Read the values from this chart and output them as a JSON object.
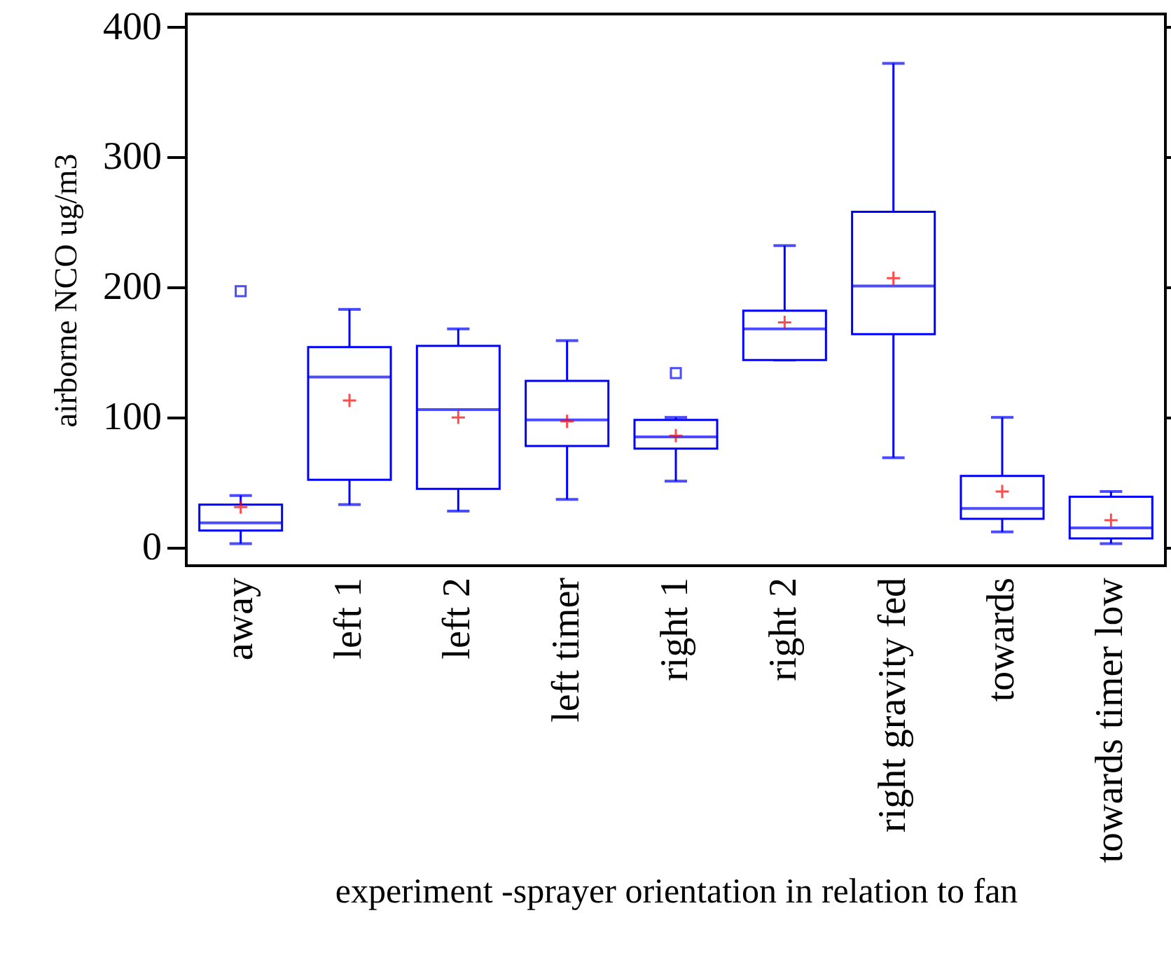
{
  "chart_data": {
    "type": "box",
    "xlabel": "experiment -sprayer orientation in relation to fan",
    "ylabel": "airborne NCO ug/m3",
    "categories": [
      "away",
      "left 1",
      "left 2",
      "left timer",
      "right 1",
      "right 2",
      "right gravity fed",
      "towards",
      "towards timer low"
    ],
    "boxes": [
      {
        "low": 3,
        "q1": 13,
        "median": 19,
        "q3": 33,
        "high": 40,
        "mean": 31,
        "outliers": [
          197
        ]
      },
      {
        "low": 33,
        "q1": 52,
        "median": 131,
        "q3": 154,
        "high": 183,
        "mean": 113
      },
      {
        "low": 28,
        "q1": 45,
        "median": 106,
        "q3": 155,
        "high": 168,
        "mean": 100
      },
      {
        "low": 37,
        "q1": 78,
        "median": 98,
        "q3": 128,
        "high": 159,
        "mean": 97
      },
      {
        "low": 51,
        "q1": 76,
        "median": 85,
        "q3": 98,
        "high": 100,
        "mean": 86,
        "outliers": [
          134
        ]
      },
      {
        "low": 144,
        "q1": 144,
        "median": 168,
        "q3": 182,
        "high": 232,
        "mean": 173
      },
      {
        "low": 69,
        "q1": 164,
        "median": 201,
        "q3": 258,
        "high": 372,
        "mean": 207
      },
      {
        "low": 12,
        "q1": 22,
        "median": 30,
        "q3": 55,
        "high": 100,
        "mean": 43
      },
      {
        "low": 3,
        "q1": 7,
        "median": 15,
        "q3": 39,
        "high": 43,
        "mean": 21
      }
    ],
    "color": "#0000ff",
    "ylim": [
      -14,
      410
    ],
    "yticks": [
      0,
      100,
      200,
      300,
      400
    ],
    "grid": false
  }
}
